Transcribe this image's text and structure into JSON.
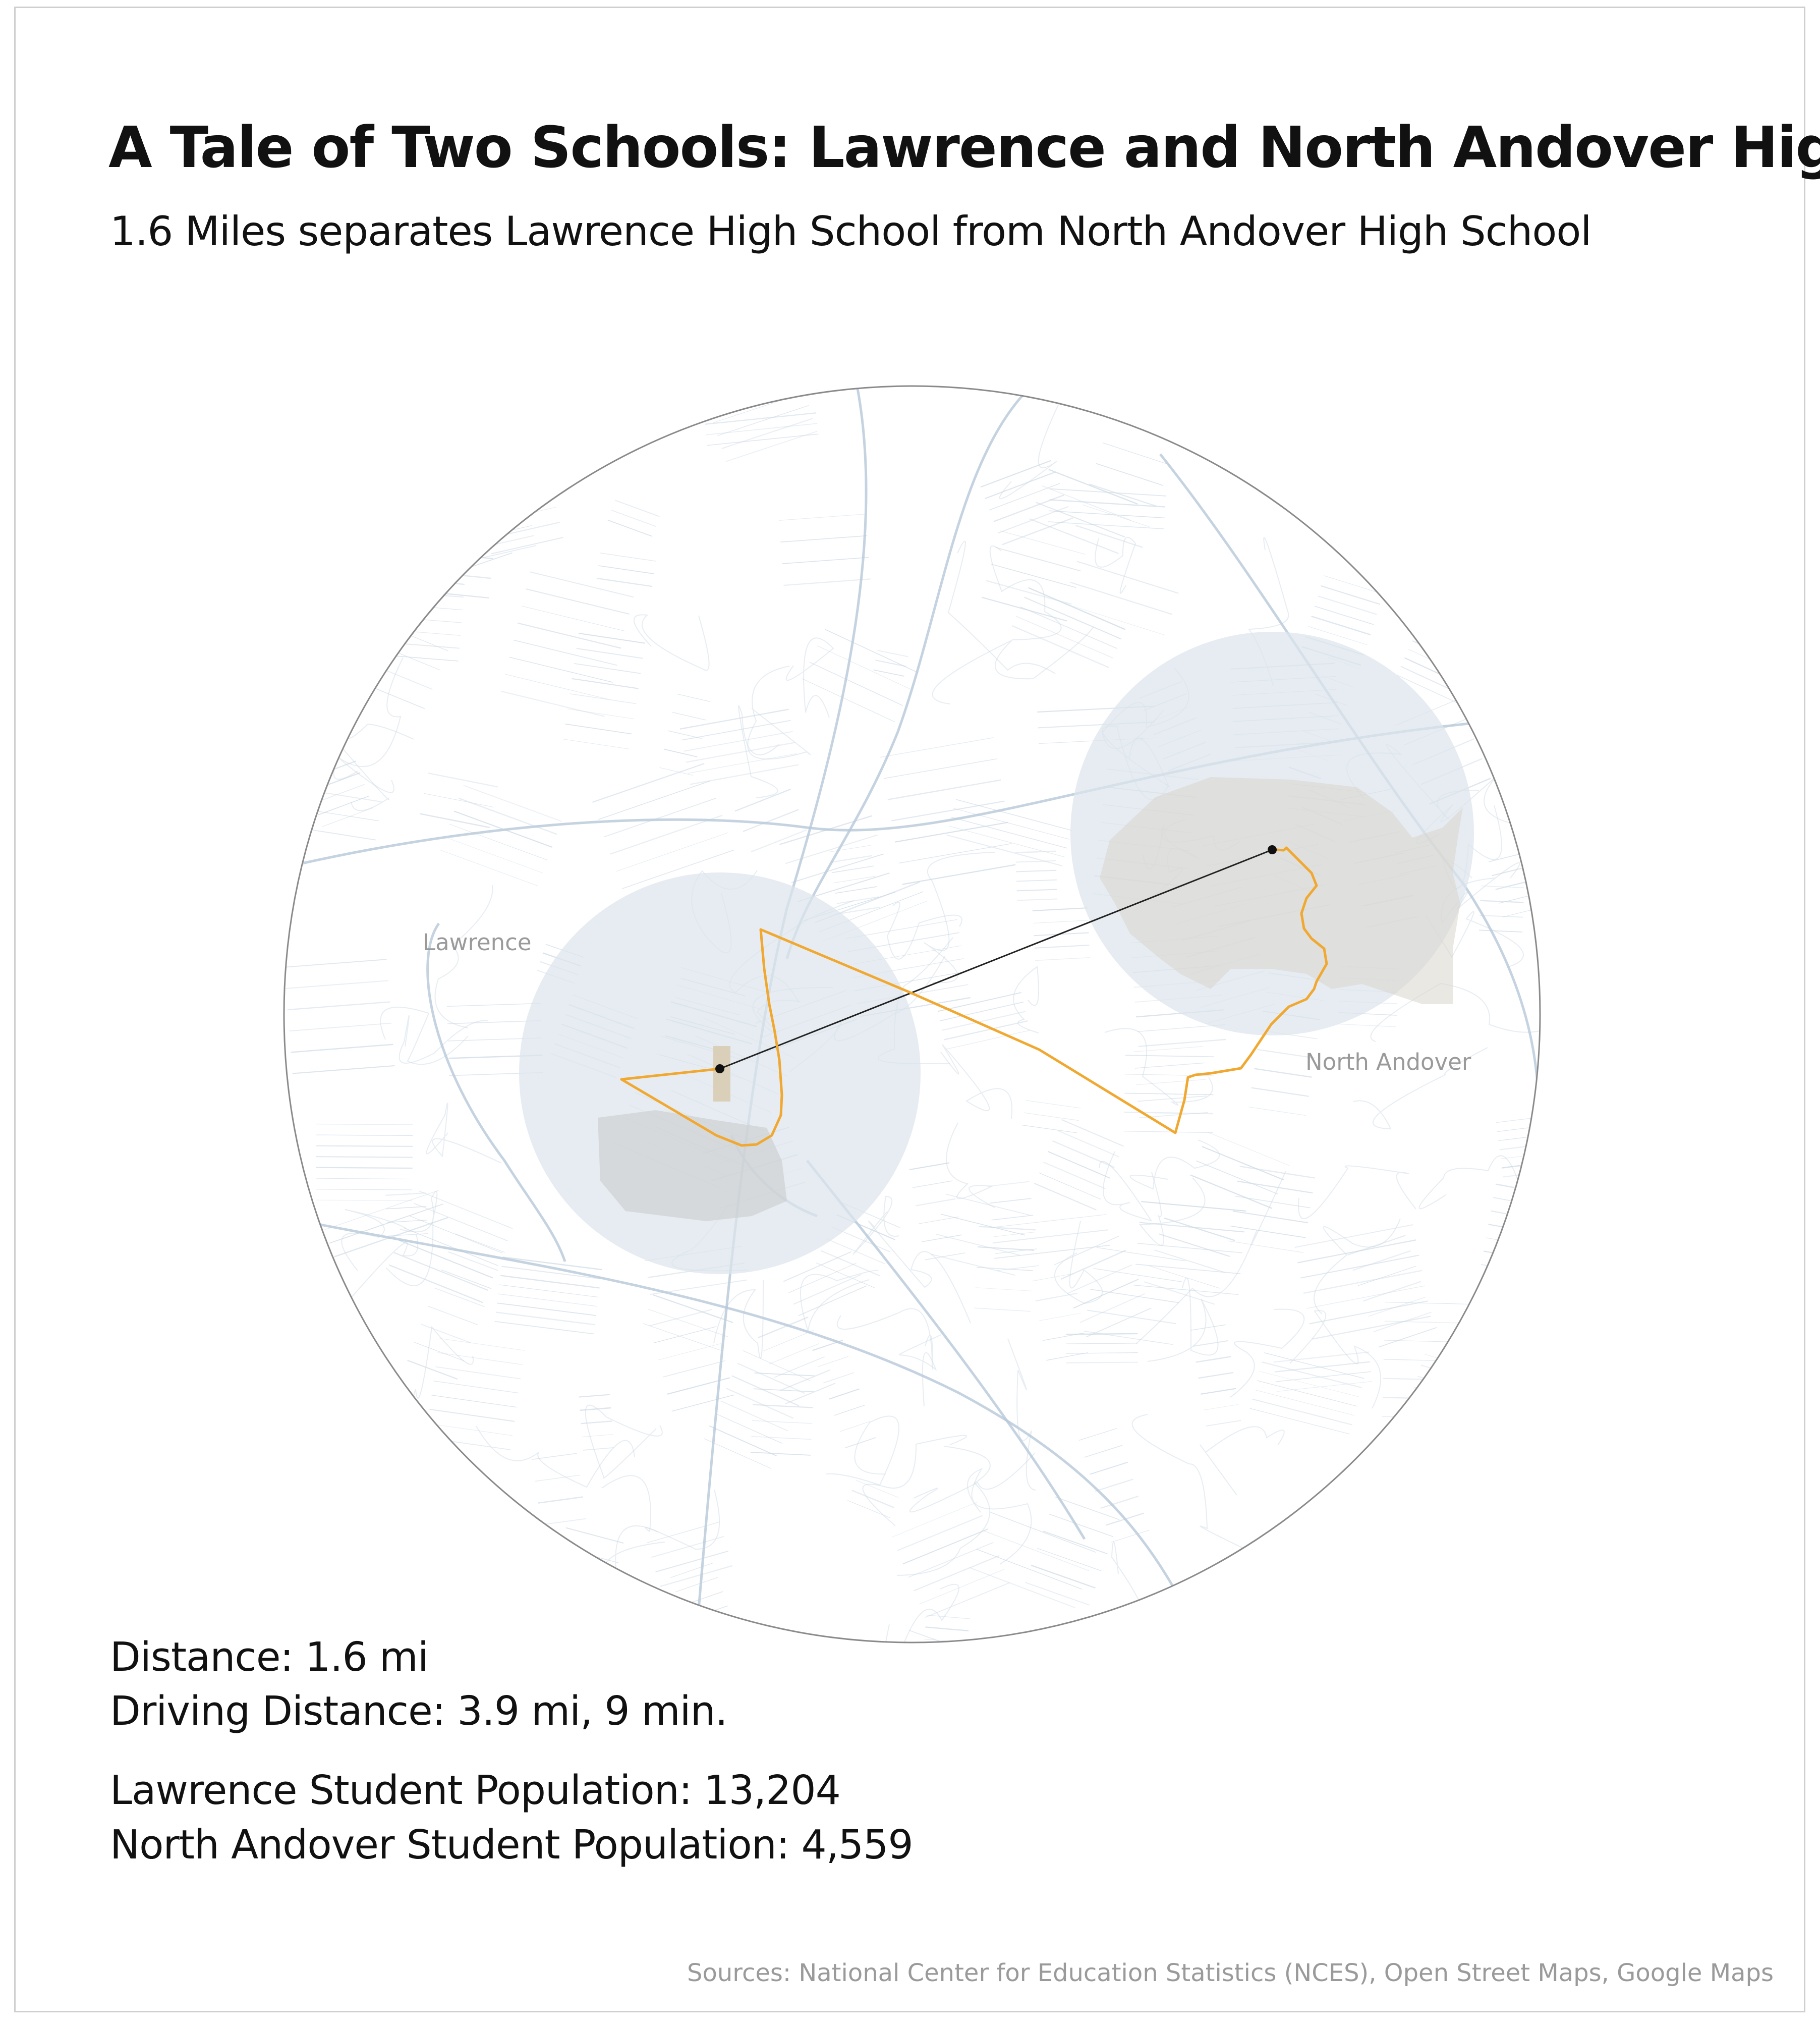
{
  "header": {
    "title": "A Tale of Two Schools: Lawrence and North Andover High",
    "subtitle": "1.6 Miles separates Lawrence High School from North Andover High School"
  },
  "map": {
    "labels": {
      "lawrence": "Lawrence",
      "north_andover": "North Andover"
    },
    "colors": {
      "route": "#F0A830",
      "straight_line": "#222222",
      "school_buffer": "#DCE4EC",
      "streets": "#C9D6E2",
      "outline": "#8A8A8A",
      "town_label": "#9A9A9A"
    }
  },
  "stats": {
    "distance": "Distance: 1.6 mi",
    "driving_distance": "Driving Distance: 3.9 mi, 9 min.",
    "lawrence_population": "Lawrence Student Population: 13,204",
    "north_andover_population": "North Andover Student Population: 4,559"
  },
  "footer": {
    "sources": "Sources: National Center for Education Statistics (NCES), Open Street Maps, Google Maps"
  }
}
